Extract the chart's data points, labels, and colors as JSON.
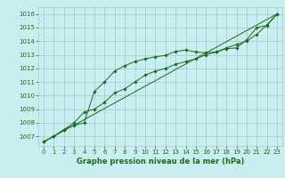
{
  "title": "Graphe pression niveau de la mer (hPa)",
  "bg_color": "#c8eef0",
  "grid_color": "#a0c8d0",
  "line_color": "#1a6b1a",
  "xlim": [
    -0.5,
    23.5
  ],
  "ylim": [
    1006.3,
    1016.5
  ],
  "yticks": [
    1007,
    1008,
    1009,
    1010,
    1011,
    1012,
    1013,
    1014,
    1015,
    1016
  ],
  "xticks": [
    0,
    1,
    2,
    3,
    4,
    5,
    6,
    7,
    8,
    9,
    10,
    11,
    12,
    13,
    14,
    15,
    16,
    17,
    18,
    19,
    20,
    21,
    22,
    23
  ],
  "series1_x": [
    0,
    1,
    2,
    3,
    4,
    5,
    6,
    7,
    8,
    9,
    10,
    11,
    12,
    13,
    14,
    15,
    16,
    17,
    18,
    19,
    20,
    21,
    22,
    23
  ],
  "series1_y": [
    1006.6,
    1007.0,
    1007.5,
    1007.8,
    1008.0,
    1010.3,
    1011.0,
    1011.8,
    1012.2,
    1012.5,
    1012.7,
    1012.85,
    1012.95,
    1013.25,
    1013.35,
    1013.2,
    1013.15,
    1013.2,
    1013.45,
    1013.5,
    1014.1,
    1015.0,
    1015.15,
    1016.0
  ],
  "series2_x": [
    0,
    1,
    2,
    3,
    4,
    5,
    6,
    7,
    8,
    9,
    10,
    11,
    12,
    13,
    14,
    15,
    16,
    17,
    18,
    19,
    20,
    21,
    22,
    23
  ],
  "series2_y": [
    1006.6,
    1007.0,
    1007.5,
    1008.0,
    1008.8,
    1009.0,
    1009.5,
    1010.2,
    1010.5,
    1011.0,
    1011.5,
    1011.8,
    1012.0,
    1012.3,
    1012.5,
    1012.7,
    1013.0,
    1013.2,
    1013.5,
    1013.75,
    1014.0,
    1014.5,
    1015.2,
    1016.0
  ],
  "series3_x": [
    0,
    23
  ],
  "series3_y": [
    1006.6,
    1016.0
  ],
  "title_fontsize": 6,
  "tick_fontsize": 5
}
